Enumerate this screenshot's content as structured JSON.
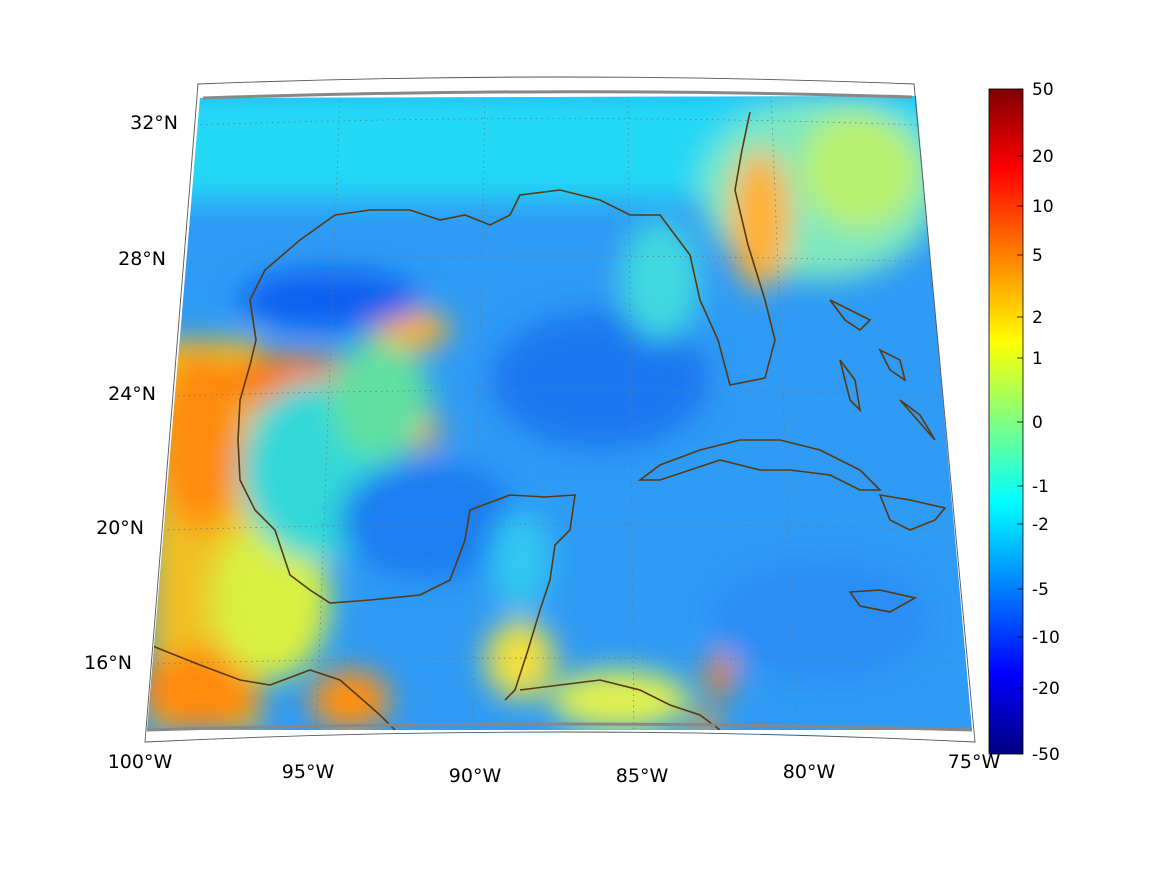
{
  "map": {
    "lon_labels": [
      "100°W",
      "95°W",
      "90°W",
      "85°W",
      "80°W",
      "75°W"
    ],
    "lat_labels": [
      "32°N",
      "28°N",
      "24°N",
      "20°N",
      "16°N"
    ],
    "colormap": "jet",
    "coastline_color": "#5a3a10",
    "grid_style": "dotted"
  },
  "colorbar": {
    "labels": [
      "50",
      "20",
      "10",
      "5",
      "2",
      "1",
      "0",
      "-1",
      "-2",
      "-5",
      "-10",
      "-20",
      "-50"
    ]
  }
}
